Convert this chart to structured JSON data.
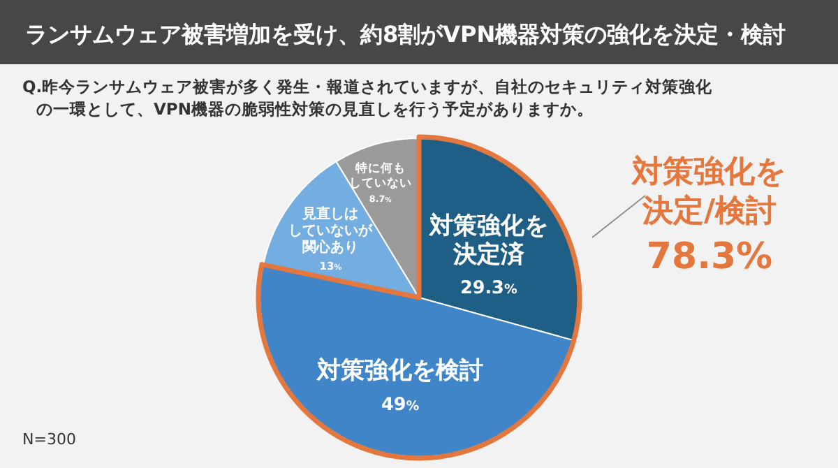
{
  "chart_data": {
    "type": "pie",
    "title": "ランサムウェア被害増加を受け、約8割がVPN機器対策の強化を決定・検討",
    "subtitle": "Q.昨今ランサムウェア被害が多く発生・報道されていますが、自社のセキュリティ対策強化の一環として、VPN機器の脆弱性対策の見直しを行う予定がありますか。",
    "categories": [
      "対策強化を決定済",
      "対策強化を検討",
      "見直しはしていないが関心あり",
      "特に何もしていない"
    ],
    "values": [
      29.3,
      49,
      13,
      8.7
    ],
    "colors": [
      "#1f5f86",
      "#3f85c8",
      "#74aee0",
      "#9a9a9a"
    ],
    "value_labels": [
      "29.3%",
      "49%",
      "13%",
      "8.7%"
    ],
    "annotations": [
      "対策強化を決定/検討",
      "78.3%",
      "N=300"
    ]
  }
}
